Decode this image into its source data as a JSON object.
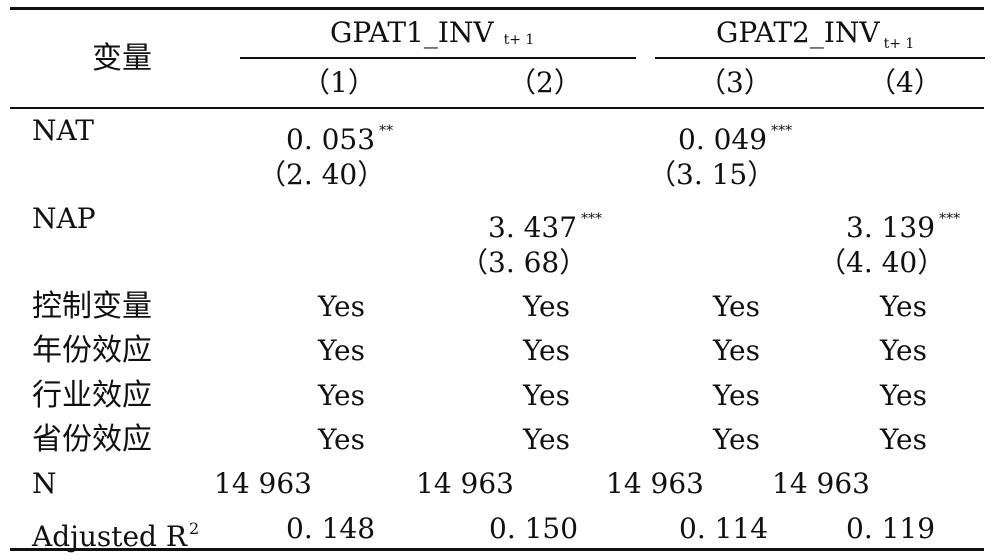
{
  "header": {
    "variable_label": "变量",
    "group1": {
      "label": "GPAT1_INV",
      "subscript": "t+ 1"
    },
    "group2": {
      "label": "GPAT2_INV",
      "subscript": "t+ 1"
    },
    "columns": [
      "（1）",
      "（2）",
      "（3）",
      "（4）"
    ]
  },
  "rows": {
    "nat": {
      "label": "NAT",
      "col1": {
        "coef": "0. 053",
        "sig": "**",
        "t": "（2. 40）"
      },
      "col3": {
        "coef": "0. 049",
        "sig": "***",
        "t": "（3. 15）"
      }
    },
    "nap": {
      "label": "NAP",
      "col2": {
        "coef": "3. 437",
        "sig": "***",
        "t": "（3. 68）"
      },
      "col4": {
        "coef": "3. 139",
        "sig": "***",
        "t": "（4. 40）"
      }
    },
    "controls": [
      {
        "label": "控制变量",
        "values": [
          "Yes",
          "Yes",
          "Yes",
          "Yes"
        ]
      },
      {
        "label": "年份效应",
        "values": [
          "Yes",
          "Yes",
          "Yes",
          "Yes"
        ]
      },
      {
        "label": "行业效应",
        "values": [
          "Yes",
          "Yes",
          "Yes",
          "Yes"
        ]
      },
      {
        "label": "省份效应",
        "values": [
          "Yes",
          "Yes",
          "Yes",
          "Yes"
        ]
      }
    ],
    "n": {
      "label": "N",
      "values": [
        "14 963",
        "14 963",
        "14 963",
        "14 963"
      ]
    },
    "adjusted_r2": {
      "label": "Adjusted R",
      "sup": "2",
      "values": [
        "0. 148",
        "0. 150",
        "0. 114",
        "0. 119"
      ]
    }
  }
}
